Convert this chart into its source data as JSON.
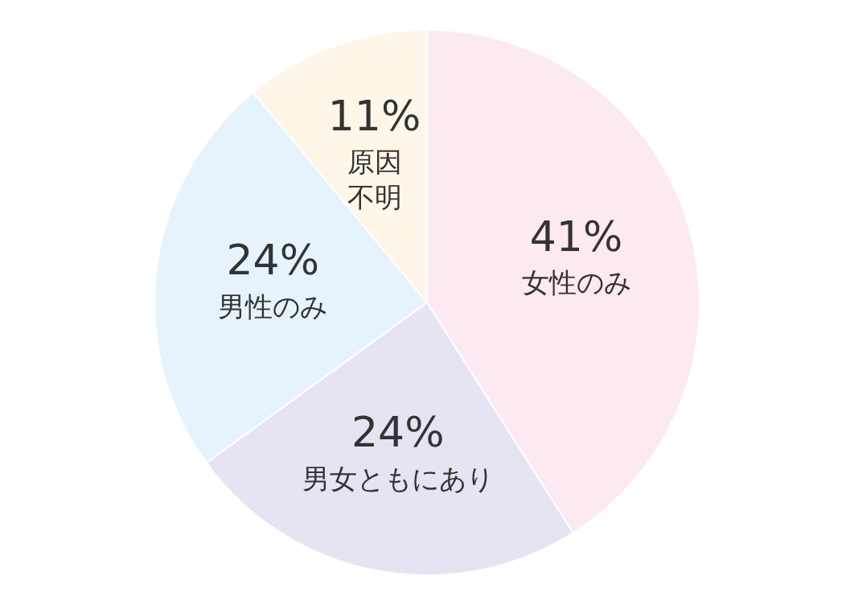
{
  "chart_data": {
    "type": "pie",
    "categories": [
      "女性のみ",
      "男女ともにあり",
      "男性のみ",
      "原因不明"
    ],
    "values": [
      41,
      24,
      24,
      11
    ],
    "value_labels": [
      "41%",
      "24%",
      "24%",
      "11%"
    ],
    "colors": [
      "#fce9f2",
      "#e6e4f2",
      "#e6f3fc",
      "#fef6e8"
    ],
    "legend": false
  }
}
